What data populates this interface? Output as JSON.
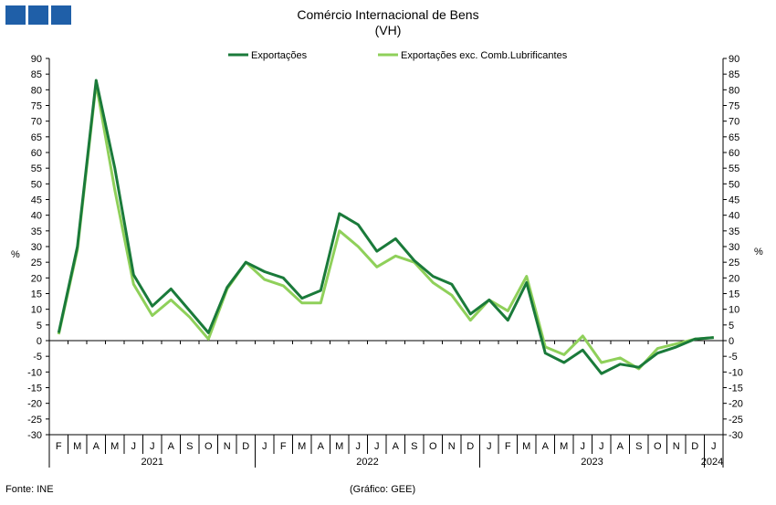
{
  "header": {
    "title": "Comércio Internacional de Bens",
    "subtitle": "(VH)"
  },
  "footer": {
    "source": "Fonte: INE",
    "credit": "(Gráfico: GEE)"
  },
  "colors": {
    "exports": "#1a7a3a",
    "exports_excl": "#8fd05a",
    "logo": "#1f5fa8"
  },
  "chart_data": {
    "type": "line",
    "title": "Comércio Internacional de Bens",
    "subtitle": "(VH)",
    "ylabel_left": "%",
    "ylabel_right": "%",
    "ylim": [
      -30,
      90
    ],
    "ytick_step": 5,
    "legend_position": "top-center",
    "grid": false,
    "months": [
      "F",
      "M",
      "A",
      "M",
      "J",
      "J",
      "A",
      "S",
      "O",
      "N",
      "D",
      "J",
      "F",
      "M",
      "A",
      "M",
      "J",
      "J",
      "A",
      "S",
      "O",
      "N",
      "D",
      "J",
      "F",
      "M",
      "A",
      "M",
      "J",
      "J",
      "A",
      "S",
      "O",
      "N",
      "D",
      "J"
    ],
    "years": [
      {
        "label": "2021",
        "start": 0,
        "end": 10
      },
      {
        "label": "2022",
        "start": 11,
        "end": 22
      },
      {
        "label": "2023",
        "start": 23,
        "end": 34
      },
      {
        "label": "2024",
        "start": 35,
        "end": 35
      }
    ],
    "series": [
      {
        "name": "Exportações",
        "values": [
          2.5,
          30,
          83,
          55,
          21,
          11,
          16.5,
          9.5,
          2.5,
          17,
          25,
          22,
          20,
          13.5,
          16,
          40.5,
          37,
          28.5,
          32.5,
          25.5,
          20.5,
          18,
          8.5,
          13,
          6.5,
          18.5,
          -4,
          -7,
          -3,
          -10.5,
          -7.5,
          -8.5,
          -4,
          -2,
          0.5,
          1
        ]
      },
      {
        "name": "Exportações exc. Comb.Lubrificantes",
        "values": [
          2,
          29,
          82,
          48,
          18,
          8,
          13,
          7.5,
          0.5,
          16.5,
          25,
          19.5,
          17.5,
          12,
          12,
          35,
          30,
          23.5,
          27,
          25,
          18.5,
          14.5,
          6.5,
          13,
          9.5,
          20.5,
          -2,
          -4.5,
          1.5,
          -7,
          -5.5,
          -9,
          -2.5,
          -1,
          0.5,
          1
        ]
      }
    ]
  }
}
